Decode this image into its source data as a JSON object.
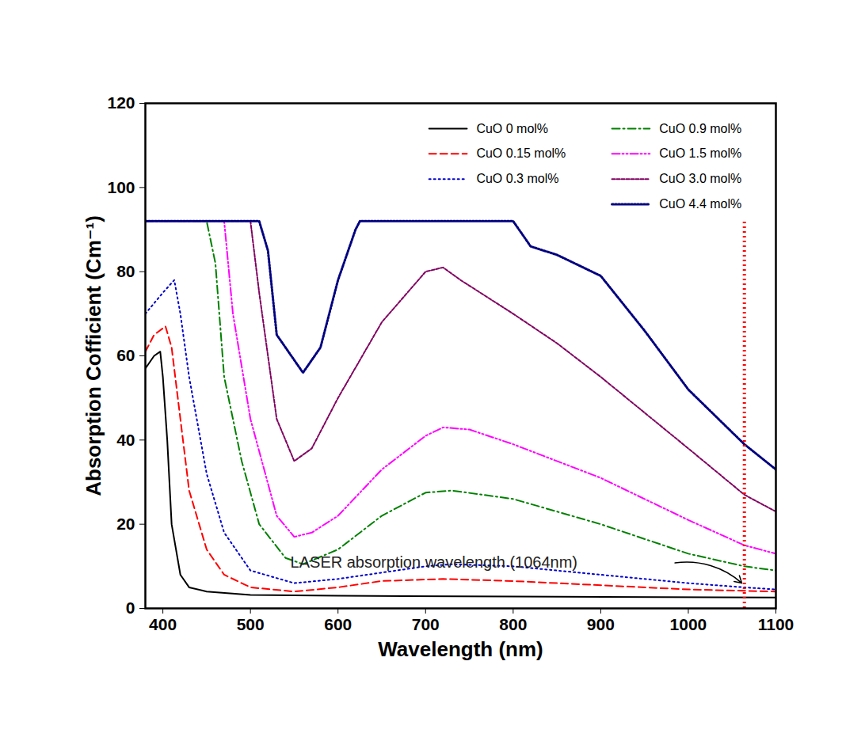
{
  "chart_data": {
    "type": "line",
    "x_label": "Wavelength (nm)",
    "y_label": "Absorption Cofficient (Cm⁻¹)",
    "xlim": [
      380,
      1100
    ],
    "xticks": [
      400,
      500,
      600,
      700,
      800,
      900,
      1000,
      1100
    ],
    "ylim": [
      0,
      120
    ],
    "yticks": [
      0,
      20,
      40,
      60,
      80,
      100,
      120
    ],
    "grid": false,
    "legend": "upper right",
    "annotations": [
      {
        "text": "LASER absorption wavelength (1064nm)",
        "x": 1064,
        "color": "#ff0000",
        "line_style": "dotted"
      }
    ],
    "series": [
      {
        "name": "CuO 0 mol%",
        "color": "#000000",
        "line_style": "solid",
        "x": [
          380,
          390,
          397,
          400,
          405,
          410,
          420,
          430,
          450,
          500,
          600,
          800,
          1100
        ],
        "values": [
          57,
          60,
          61,
          55,
          40,
          20,
          8,
          5,
          4,
          3.2,
          3,
          2.8,
          2.6
        ]
      },
      {
        "name": "CuO 0.15 mol%",
        "color": "#ff0000",
        "line_style": "dashed",
        "x": [
          380,
          390,
          403,
          410,
          420,
          430,
          450,
          470,
          500,
          550,
          600,
          650,
          720,
          800,
          900,
          1000,
          1100
        ],
        "values": [
          61,
          65,
          67,
          62,
          45,
          28,
          14,
          8,
          5,
          4,
          5,
          6.5,
          7,
          6.5,
          5.5,
          4.5,
          4
        ]
      },
      {
        "name": "CuO 0.3 mol%",
        "color": "#0000cc",
        "line_style": "dotted",
        "x": [
          380,
          400,
          413,
          420,
          430,
          450,
          470,
          500,
          550,
          600,
          700,
          730,
          800,
          900,
          1000,
          1064,
          1100
        ],
        "values": [
          70,
          75,
          78,
          70,
          55,
          32,
          18,
          9,
          6,
          7,
          10,
          10.5,
          10,
          8,
          6,
          5,
          4.5
        ]
      },
      {
        "name": "CuO 0.9 mol%",
        "color": "#008000",
        "line_style": "dashdot",
        "x": [
          380,
          450,
          460,
          470,
          490,
          510,
          540,
          560,
          600,
          650,
          700,
          730,
          800,
          900,
          1000,
          1064,
          1100
        ],
        "values": [
          92,
          92,
          82,
          55,
          35,
          20,
          12,
          10.5,
          14,
          22,
          27.5,
          28,
          26,
          20,
          13,
          10,
          9
        ]
      },
      {
        "name": "CuO 1.5 mol%",
        "color": "#ff00ff",
        "line_style": "dashdotdot",
        "x": [
          380,
          470,
          480,
          500,
          530,
          550,
          570,
          600,
          650,
          700,
          720,
          750,
          800,
          900,
          1000,
          1064,
          1100
        ],
        "values": [
          92,
          92,
          70,
          45,
          22,
          17,
          18,
          22,
          33,
          41,
          43,
          42.5,
          39,
          31,
          21,
          15,
          13
        ]
      },
      {
        "name": "CuO 3.0 mol%",
        "color": "#800060",
        "line_style": "short_dash",
        "x": [
          380,
          500,
          510,
          530,
          550,
          570,
          600,
          650,
          700,
          720,
          740,
          800,
          850,
          900,
          1000,
          1064,
          1100
        ],
        "values": [
          92,
          92,
          75,
          45,
          35,
          38,
          50,
          68,
          80,
          81,
          78,
          70,
          63,
          55,
          38,
          27,
          23
        ]
      },
      {
        "name": "CuO 4.4 mol%",
        "color": "#000080",
        "line_style": "dense_dotted",
        "x": [
          380,
          510,
          520,
          530,
          560,
          580,
          600,
          620,
          625,
          800,
          820,
          850,
          900,
          950,
          1000,
          1064,
          1100
        ],
        "values": [
          92,
          92,
          85,
          65,
          56,
          62,
          78,
          90,
          92,
          92,
          86,
          84,
          79,
          66,
          52,
          39,
          33
        ]
      }
    ]
  }
}
